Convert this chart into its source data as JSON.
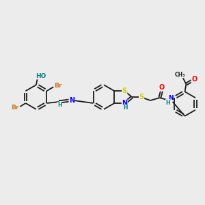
{
  "background_color": "#ececec",
  "bond_color": "#1a1a1a",
  "atom_colors": {
    "Br": "#cc7722",
    "O": "#ff0000",
    "N": "#0000ff",
    "S": "#cccc00",
    "H": "#008080",
    "C": "#1a1a1a"
  },
  "figsize": [
    3.0,
    3.0
  ],
  "dpi": 100,
  "lw": 1.3,
  "fs": 6.5
}
